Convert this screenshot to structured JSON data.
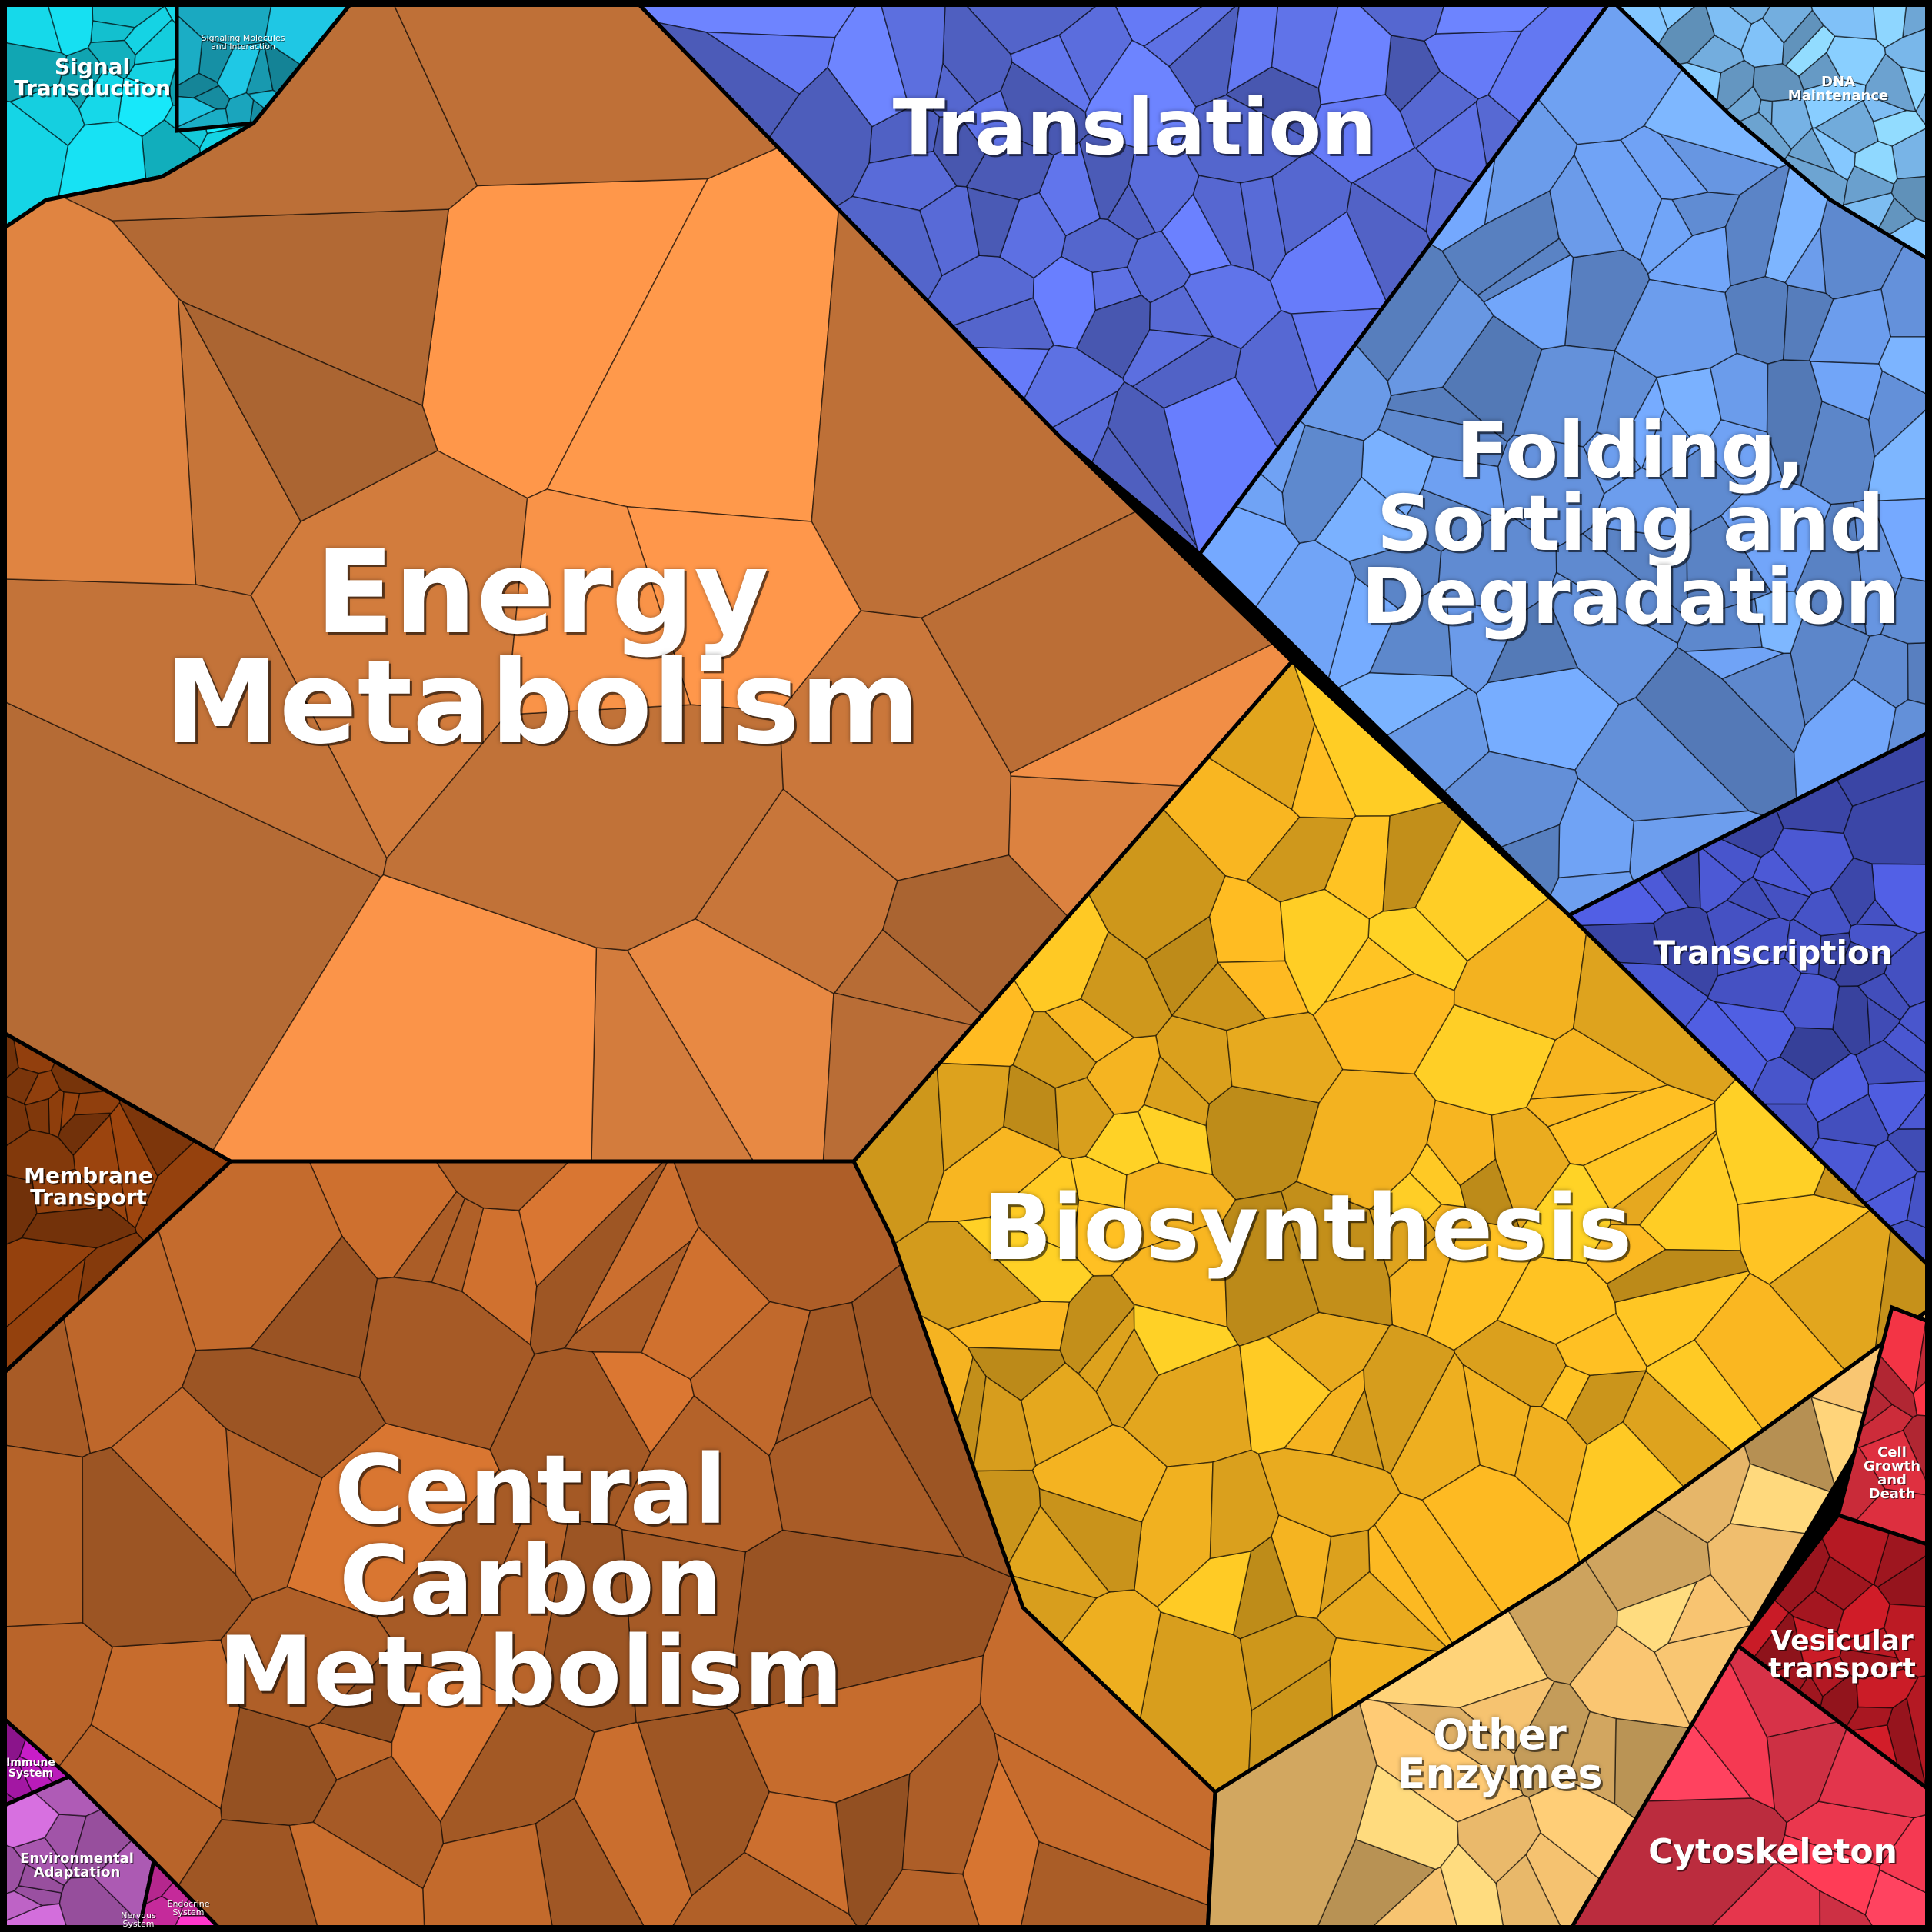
{
  "diagram": {
    "type": "voronoi-treemap",
    "categories": [
      {
        "id": "energy",
        "label": "Energy\nMetabolism",
        "color": "#d9803f"
      },
      {
        "id": "translation",
        "label": "Translation",
        "color": "#5c6fe0"
      },
      {
        "id": "folding",
        "label": "Folding,\nSorting and\nDegradation",
        "color": "#6a9ae8"
      },
      {
        "id": "dna",
        "label": "DNA\nMaintenance",
        "color": "#7ab8ec"
      },
      {
        "id": "signal",
        "label": "Signal\nTransduction",
        "color": "#14c8d8"
      },
      {
        "id": "signaling-molecules",
        "label": "Signaling Molecules\nand Interaction",
        "color": "#1aa8c0"
      },
      {
        "id": "transcription",
        "label": "Transcription",
        "color": "#4450c0"
      },
      {
        "id": "biosynthesis",
        "label": "Biosynthesis",
        "color": "#f0b020"
      },
      {
        "id": "central-carbon",
        "label": "Central\nCarbon\nMetabolism",
        "color": "#b8642a"
      },
      {
        "id": "membrane",
        "label": "Membrane\nTransport",
        "color": "#8a3c0c"
      },
      {
        "id": "other-enzymes",
        "label": "Other\nEnzymes",
        "color": "#e8b86a"
      },
      {
        "id": "cell-growth",
        "label": "Cell\nGrowth\nand\nDeath",
        "color": "#e03040"
      },
      {
        "id": "vesicular",
        "label": "Vesicular\ntransport",
        "color": "#b01822"
      },
      {
        "id": "cytoskeleton",
        "label": "Cytoskeleton",
        "color": "#f03850"
      },
      {
        "id": "immune",
        "label": "Immune\nSystem",
        "color": "#a818a8"
      },
      {
        "id": "environmental",
        "label": "Environmental\nAdaptation",
        "color": "#b860c0"
      },
      {
        "id": "endocrine",
        "label": "Endocrine\nSystem",
        "color": "#e030b0"
      },
      {
        "id": "nervous",
        "label": "Nervous\nSystem",
        "color": "#d028a0"
      }
    ]
  }
}
